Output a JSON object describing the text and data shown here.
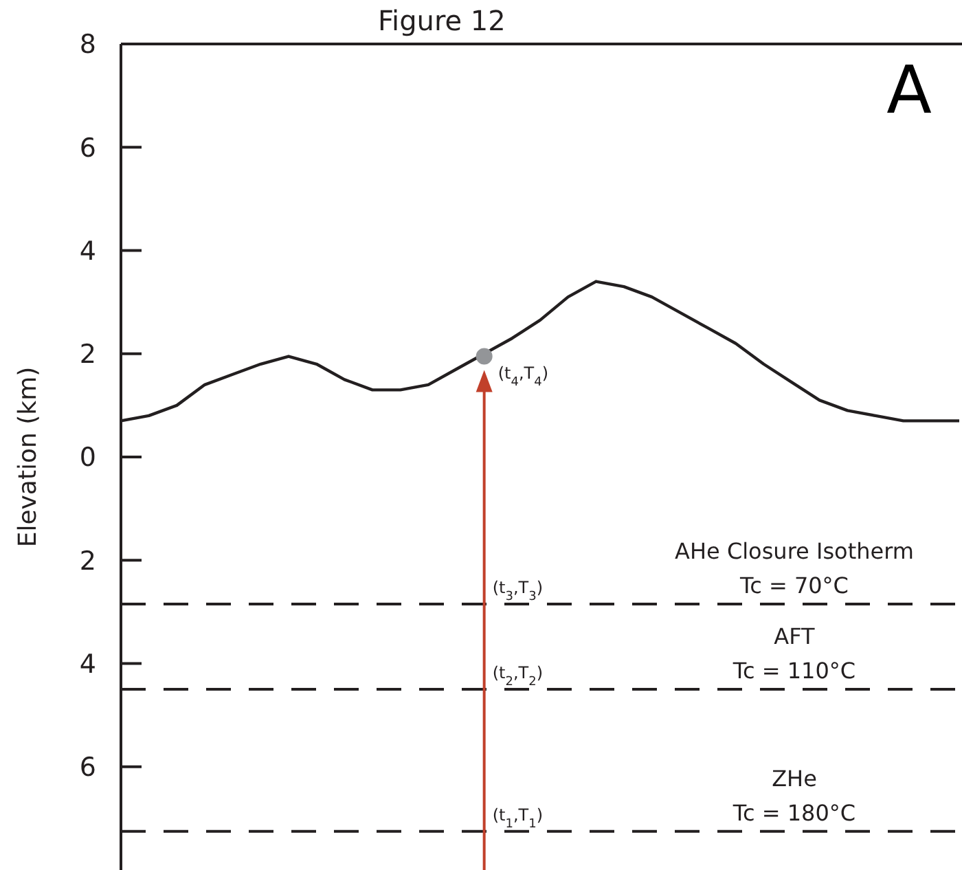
{
  "chart_data": {
    "type": "line",
    "title": "Figure 12",
    "ylabel": "Elevation (km)",
    "categories": [
      null,
      null,
      null,
      null,
      null,
      null,
      null,
      null,
      null,
      null,
      null,
      null,
      null,
      null,
      null,
      null,
      null,
      null,
      null,
      null,
      null,
      null,
      null,
      null,
      null,
      null,
      null,
      null,
      null,
      null,
      null
    ],
    "series": [
      {
        "color": "#231f20",
        "values": [
          0.7,
          0.8,
          1.0,
          1.4,
          1.6,
          1.8,
          1.95,
          1.8,
          1.5,
          1.3,
          1.3,
          1.4,
          1.7,
          2.0,
          2.3,
          2.65,
          3.1,
          3.4,
          3.3,
          3.1,
          2.8,
          2.5,
          2.2,
          1.8,
          1.45,
          1.1,
          0.9,
          0.8,
          0.7,
          0.7,
          0.7
        ]
      },
      {
        "type": "scatter",
        "color": "#939598",
        "marker": "circle",
        "values": [
          null,
          null,
          null,
          null,
          null,
          null,
          null,
          null,
          null,
          null,
          null,
          null,
          null,
          1.95,
          null,
          null,
          null,
          null,
          null,
          null,
          null,
          null,
          null,
          null,
          null,
          null,
          null,
          null,
          null,
          null,
          null
        ]
      }
    ],
    "ylim": [
      -8,
      8
    ],
    "yticks": [
      {
        "value": 8,
        "label": "8"
      },
      {
        "value": 6,
        "label": "6"
      },
      {
        "value": 4,
        "label": "4"
      },
      {
        "value": 2,
        "label": "2"
      },
      {
        "value": 0,
        "label": "0"
      },
      {
        "value": -2,
        "label": "2"
      },
      {
        "value": -4,
        "label": "4"
      },
      {
        "value": -6,
        "label": "6"
      }
    ],
    "tick_labels": "y",
    "grid": false,
    "marker": "none",
    "line_style": "solid",
    "ref_lines": [
      {
        "axis": "y",
        "value": -2.85,
        "color": "#231f20",
        "line_style": "dashed"
      },
      {
        "axis": "y",
        "value": -4.5,
        "color": "#231f20",
        "line_style": "dashed"
      },
      {
        "axis": "y",
        "value": -7.25,
        "color": "#231f20",
        "line_style": "dashed"
      }
    ],
    "annotations": [
      "A",
      "(t$_{4}$,T$_{4}$)",
      "(t$_{3}$,T$_{3}$)",
      "(t$_{2}$,T$_{2}$)",
      "(t$_{1}$,T$_{1}$)",
      "AHe Closure Isotherm\nTc = 70°C",
      "AFT\nTc = 110°C",
      "ZHe\nTc = 180°C"
    ]
  }
}
